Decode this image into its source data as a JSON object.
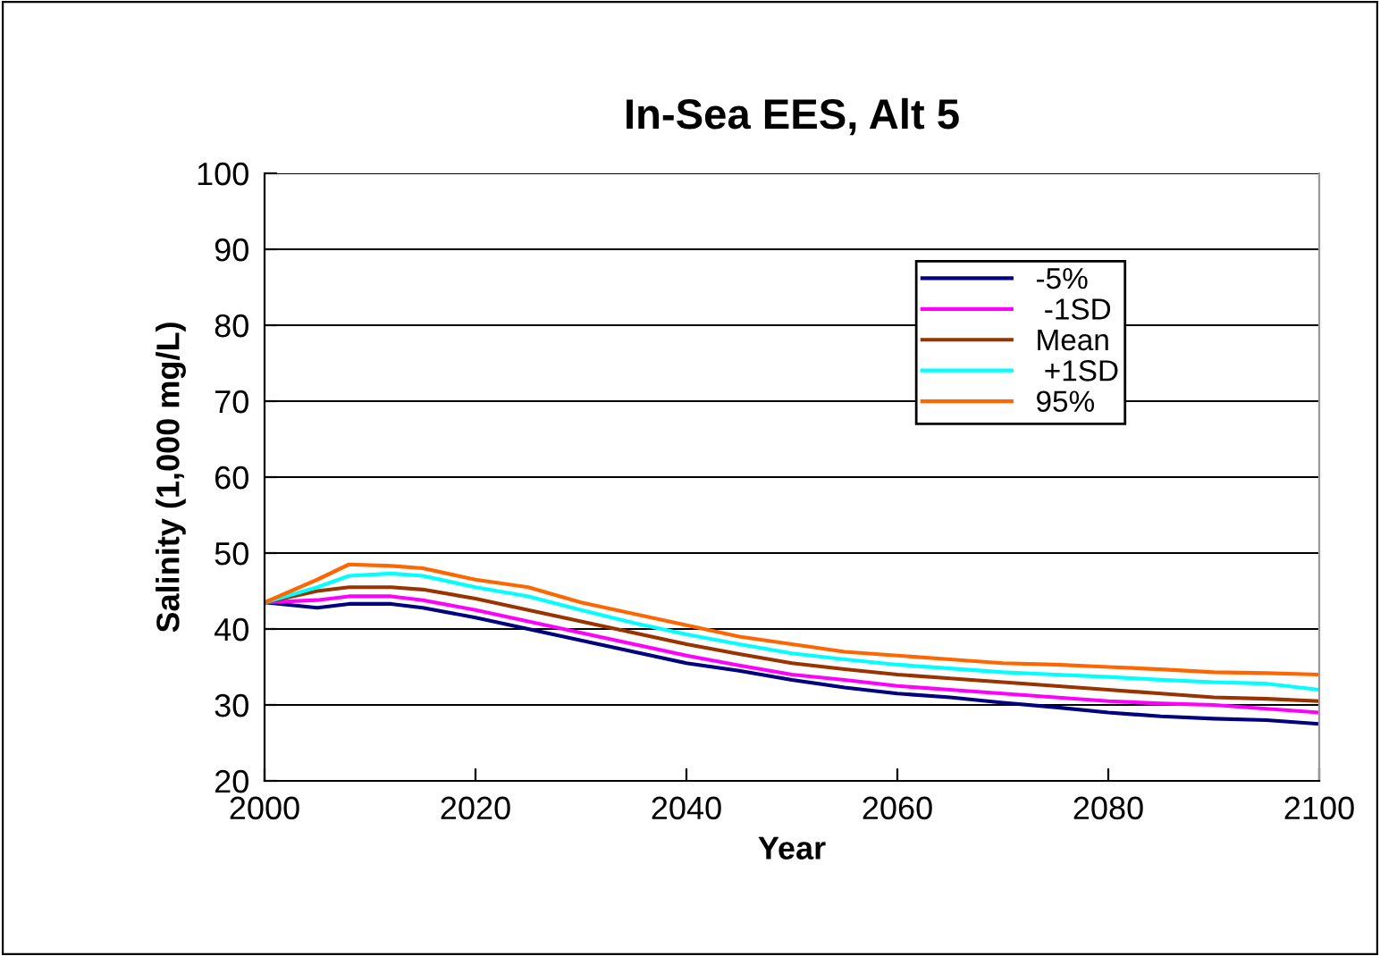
{
  "chart_data": {
    "type": "line",
    "title": "In-Sea EES, Alt 5",
    "xlabel": "Year",
    "ylabel": "Salinity (1,000 mg/L)",
    "x": [
      2000,
      2005,
      2008,
      2012,
      2015,
      2020,
      2025,
      2030,
      2035,
      2040,
      2045,
      2050,
      2055,
      2060,
      2065,
      2070,
      2075,
      2080,
      2085,
      2090,
      2095,
      2100
    ],
    "series": [
      {
        "name": "-5%",
        "color": "#000080",
        "values": [
          43.5,
          42.8,
          43.3,
          43.3,
          42.8,
          41.5,
          40,
          38.5,
          37,
          35.5,
          34.5,
          33.3,
          32.3,
          31.5,
          31,
          30.3,
          29.7,
          29,
          28.5,
          28.2,
          28,
          27.5
        ]
      },
      {
        "name": " -1SD",
        "color": "#ff00ff",
        "values": [
          43.5,
          43.8,
          44.3,
          44.3,
          43.8,
          42.5,
          41,
          39.5,
          38,
          36.5,
          35.2,
          34,
          33.3,
          32.5,
          32,
          31.5,
          31,
          30.5,
          30.2,
          30,
          29.5,
          29
        ]
      },
      {
        "name": "Mean",
        "color": "#993300",
        "values": [
          43.5,
          45,
          45.5,
          45.5,
          45.2,
          44,
          42.5,
          41,
          39.5,
          38,
          36.7,
          35.5,
          34.7,
          34,
          33.5,
          33,
          32.5,
          32,
          31.5,
          31,
          30.8,
          30.5
        ]
      },
      {
        "name": " +1SD",
        "color": "#00ffff",
        "values": [
          43.5,
          45.5,
          47,
          47.3,
          47,
          45.5,
          44.3,
          42.5,
          40.8,
          39.3,
          38,
          36.8,
          36,
          35.3,
          34.8,
          34.3,
          34,
          33.7,
          33.3,
          33,
          32.8,
          32
        ]
      },
      {
        "name": "95%",
        "color": "#ff6600",
        "values": [
          43.5,
          46.5,
          48.5,
          48.3,
          48,
          46.5,
          45.5,
          43.5,
          42,
          40.5,
          39,
          38,
          37,
          36.5,
          36,
          35.5,
          35.3,
          35,
          34.7,
          34.3,
          34.2,
          34
        ]
      }
    ],
    "xlim": [
      2000,
      2100
    ],
    "xticks": [
      2000,
      2020,
      2040,
      2060,
      2080,
      2100
    ],
    "ylim": [
      20,
      100
    ],
    "yticks": [
      20,
      30,
      40,
      50,
      60,
      70,
      80,
      90,
      100
    ],
    "grid": "y",
    "legend": "top right",
    "marker": "none",
    "line_style": "solid"
  }
}
